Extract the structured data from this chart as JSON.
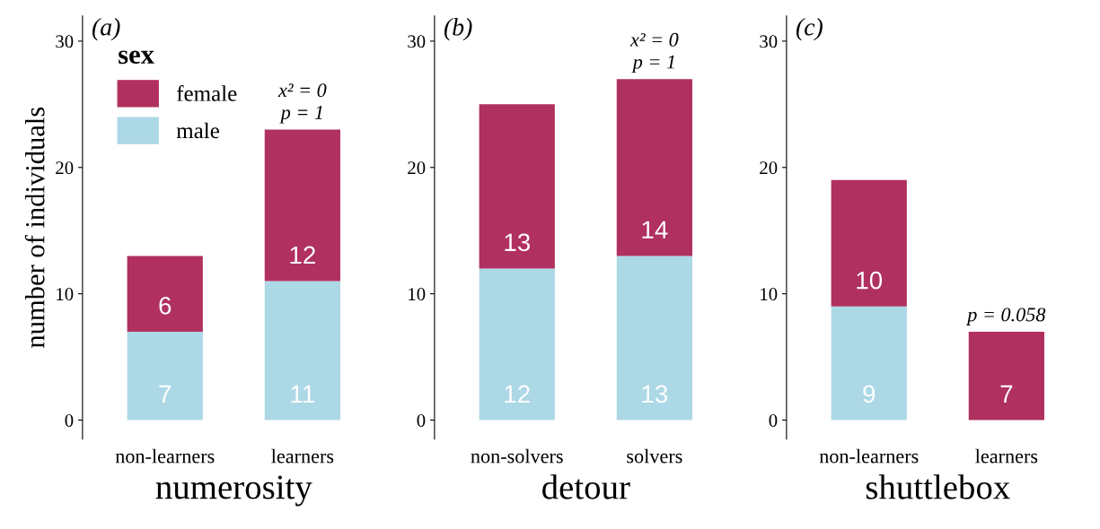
{
  "chart_data": [
    {
      "type": "bar",
      "title": "(a)",
      "xlabel": "numerosity",
      "ylabel": "number of individuals",
      "categories": [
        "non-learners",
        "learners"
      ],
      "stacked": true,
      "legend": "top left",
      "legend_title": "sex",
      "ylim": [
        -1.5,
        32
      ],
      "yticks": [
        0,
        10,
        20,
        30
      ],
      "grid": false,
      "series": [
        {
          "name": "male",
          "color": "#add8e6",
          "values": [
            7,
            11
          ],
          "value_labels": [
            "7",
            "11"
          ]
        },
        {
          "name": "female",
          "color": "#b03060",
          "values": [
            6,
            12
          ],
          "value_labels": [
            "6",
            "12"
          ]
        }
      ],
      "annotations": [
        {
          "text": "x² = 0\np = 1",
          "x": "learners",
          "y": 23
        }
      ]
    },
    {
      "type": "bar",
      "title": "(b)",
      "xlabel": "detour",
      "categories": [
        "non-solvers",
        "solvers"
      ],
      "stacked": true,
      "ylim": [
        -1.5,
        32
      ],
      "yticks": [
        0,
        10,
        20,
        30
      ],
      "grid": false,
      "series": [
        {
          "color": "#add8e6",
          "values": [
            12,
            13
          ],
          "value_labels": [
            "12",
            "13"
          ]
        },
        {
          "color": "#b03060",
          "values": [
            13,
            14
          ],
          "value_labels": [
            "13",
            "14"
          ]
        }
      ],
      "annotations": [
        {
          "text": "x² = 0\np = 1",
          "x": "solvers",
          "y": 27
        }
      ]
    },
    {
      "type": "bar",
      "title": "(c)",
      "xlabel": "shuttlebox",
      "categories": [
        "non-learners",
        "learners"
      ],
      "stacked": true,
      "ylim": [
        -1.5,
        32
      ],
      "yticks": [
        0,
        10,
        20,
        30
      ],
      "grid": false,
      "series": [
        {
          "color": "#add8e6",
          "values": [
            9,
            0
          ],
          "value_labels": [
            "9",
            null
          ]
        },
        {
          "color": "#b03060",
          "values": [
            10,
            7
          ],
          "value_labels": [
            "10",
            "7"
          ]
        }
      ],
      "annotations": [
        {
          "text": "p = 0.058",
          "x": "learners",
          "y": 7
        }
      ]
    }
  ]
}
